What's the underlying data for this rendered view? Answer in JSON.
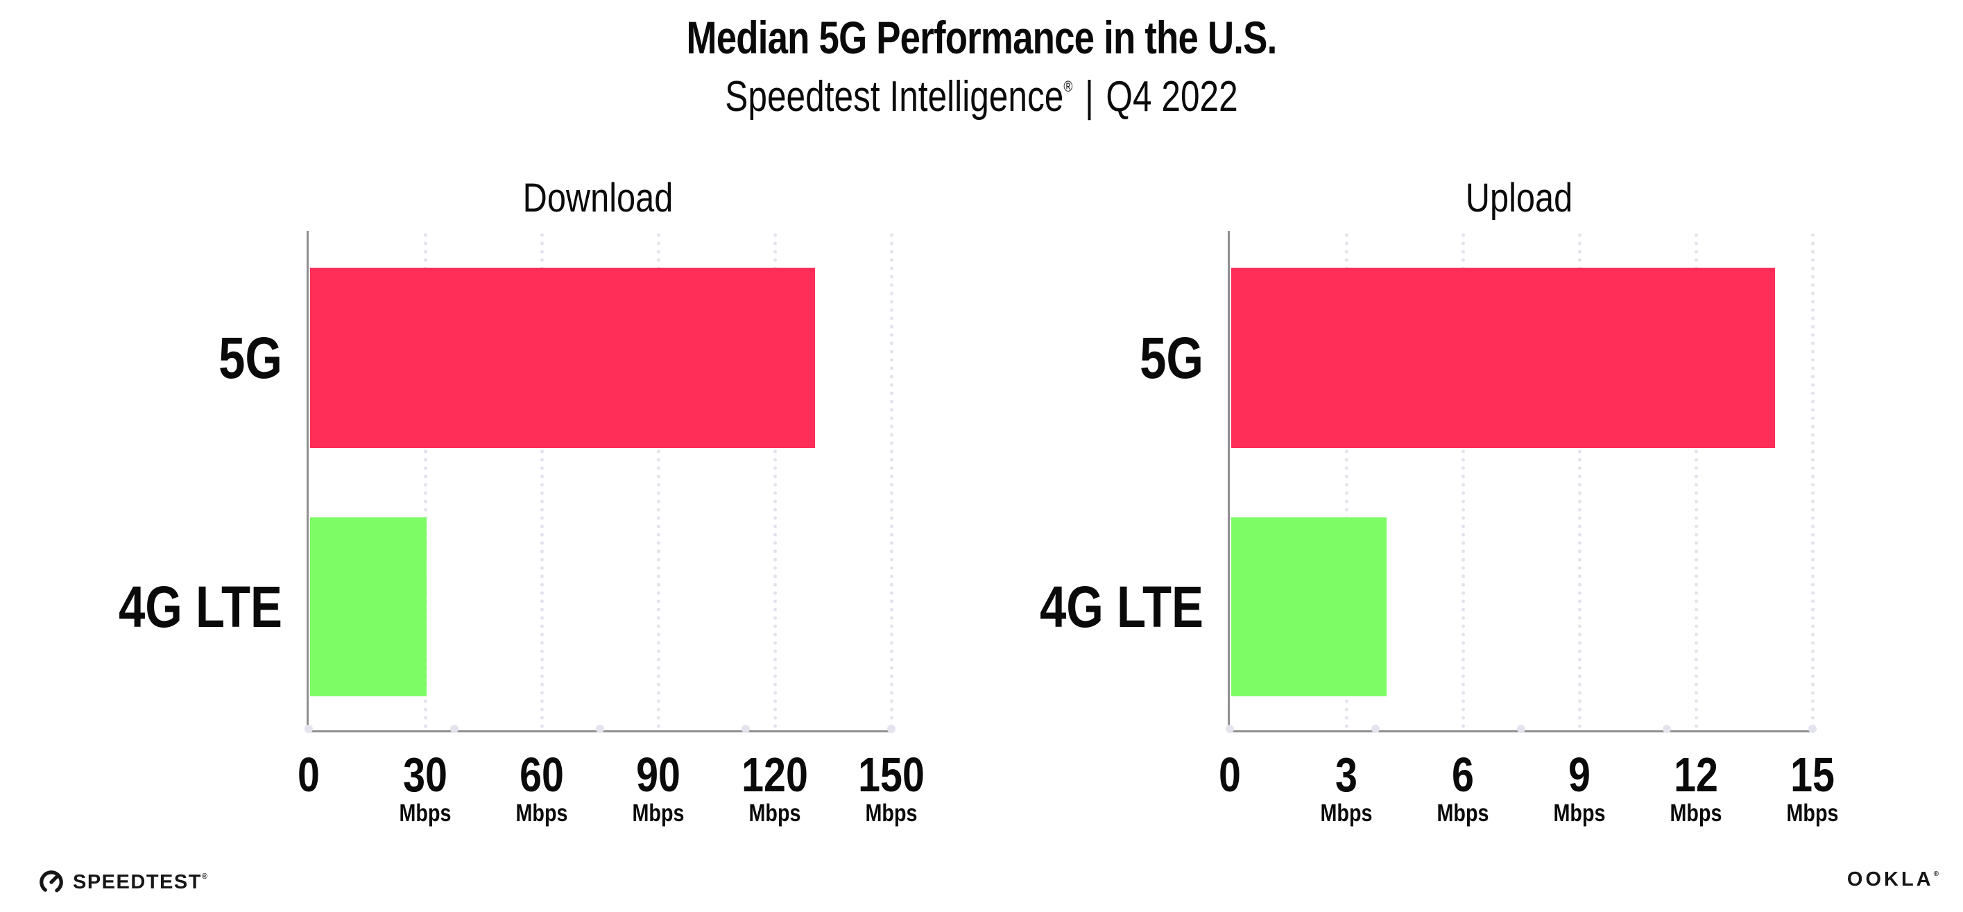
{
  "header": {
    "title": "Median 5G Performance in the U.S.",
    "subtitle_brand": "Speedtest Intelligence",
    "subtitle_reg": "®",
    "subtitle_separator": "|",
    "subtitle_period": "Q4 2022"
  },
  "chart_data": [
    {
      "type": "bar",
      "orientation": "horizontal",
      "title": "Download",
      "categories": [
        "5G",
        "4G LTE"
      ],
      "values": [
        130,
        30
      ],
      "unit": "Mbps",
      "xlim": [
        0,
        150
      ],
      "xticks": [
        0,
        30,
        60,
        90,
        120,
        150
      ],
      "bar_colors": [
        "#FF2E58",
        "#7EFC66"
      ],
      "grid": "dotted vertical gridlines at labeled ticks",
      "legend": "none",
      "data_labels": "none"
    },
    {
      "type": "bar",
      "orientation": "horizontal",
      "title": "Upload",
      "categories": [
        "5G",
        "4G LTE"
      ],
      "values": [
        14,
        4
      ],
      "unit": "Mbps",
      "xlim": [
        0,
        15
      ],
      "xticks": [
        0,
        3,
        6,
        9,
        12,
        15
      ],
      "bar_colors": [
        "#FF2E58",
        "#7EFC66"
      ],
      "grid": "dotted vertical gridlines at labeled ticks",
      "legend": "none",
      "data_labels": "none"
    }
  ],
  "footer": {
    "speedtest_logo_text": "SPEEDTEST",
    "speedtest_reg": "®",
    "ookla_logo_text": "OOKLA",
    "ookla_reg": "®"
  },
  "colors": {
    "bar_5g": "#FF2E58",
    "bar_4g_lte": "#7EFC66",
    "axis_line": "#8F8F8F",
    "grid_dots": "#E2E2EC",
    "axis_marker_dots": "#E4E4EE",
    "text": "#0A0A0A",
    "background": "#FFFFFF"
  }
}
